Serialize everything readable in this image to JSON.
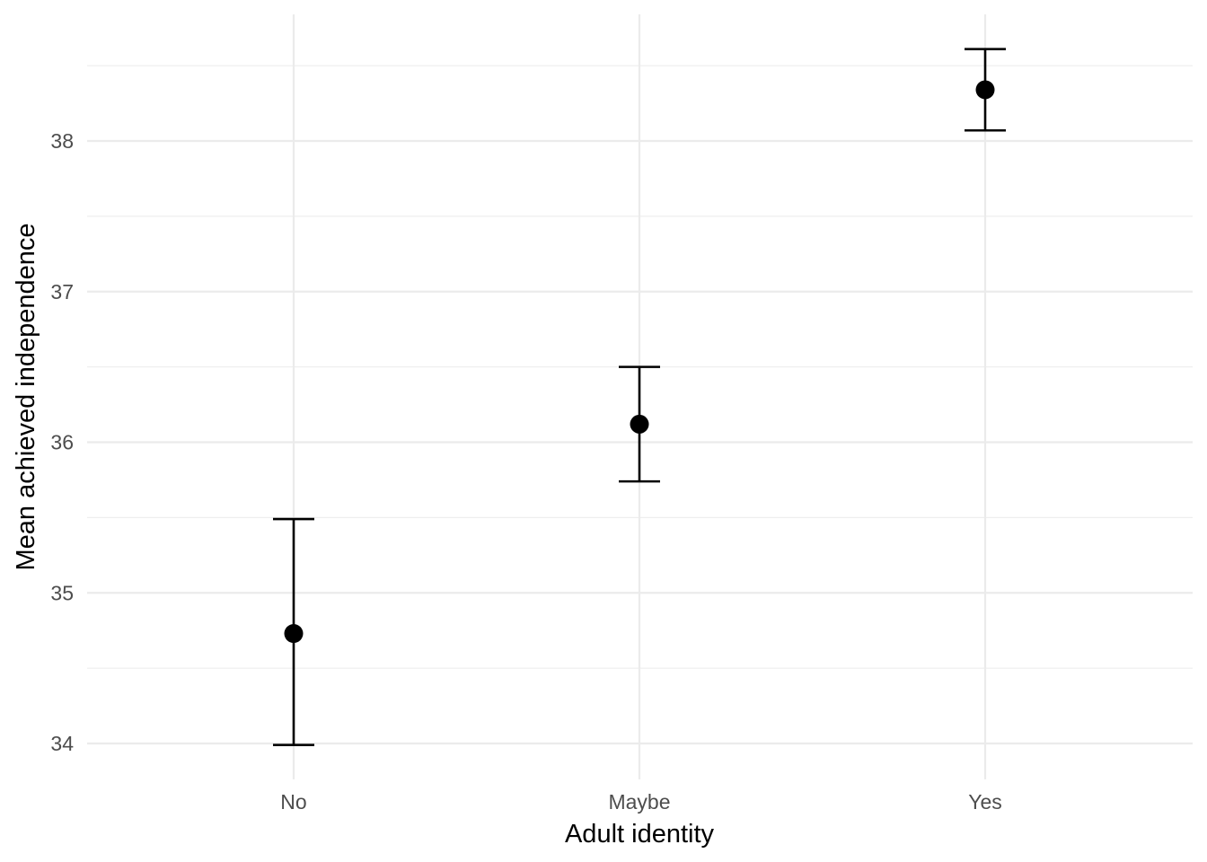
{
  "chart_data": {
    "type": "scatter",
    "title": "",
    "xlabel": "Adult identity",
    "ylabel": "Mean achieved independence",
    "categories": [
      "No",
      "Maybe",
      "Yes"
    ],
    "series": [
      {
        "values": [
          34.73,
          36.12,
          38.34
        ],
        "lower": [
          33.99,
          35.74,
          38.07
        ],
        "upper": [
          35.49,
          36.5,
          38.61
        ]
      }
    ],
    "ylim": [
      33.8,
      38.85
    ],
    "yticks": [
      34,
      35,
      36,
      37,
      38
    ],
    "ytick_labels": [
      "34",
      "35",
      "36",
      "37",
      "38"
    ],
    "grid": true,
    "legend": "none"
  }
}
